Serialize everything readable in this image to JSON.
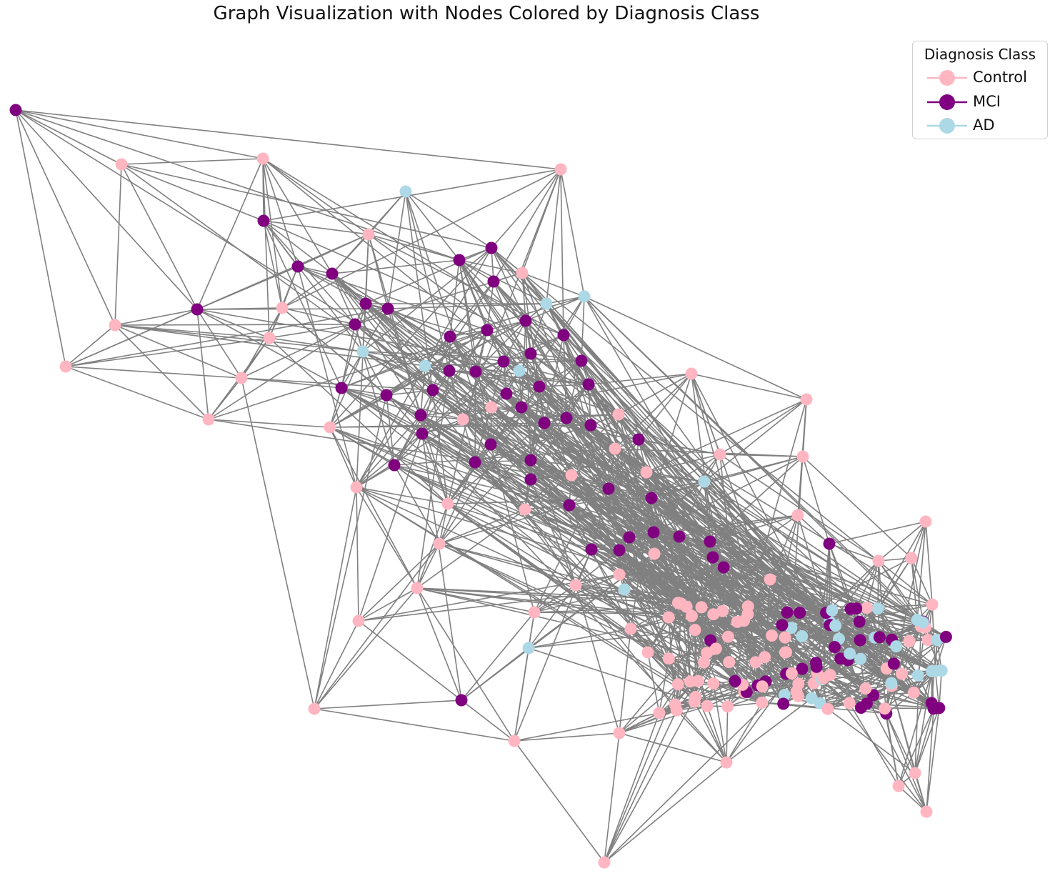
{
  "title": "Graph Visualization with Nodes Colored by Diagnosis Class",
  "legend": {
    "title": "Diagnosis Class",
    "placement": "top-right",
    "items": [
      {
        "label": "Control",
        "color": "#ffb6c1"
      },
      {
        "label": "MCI",
        "color": "#800080"
      },
      {
        "label": "AD",
        "color": "#add8e6"
      }
    ]
  },
  "colors": {
    "edge": "#808080"
  }
}
